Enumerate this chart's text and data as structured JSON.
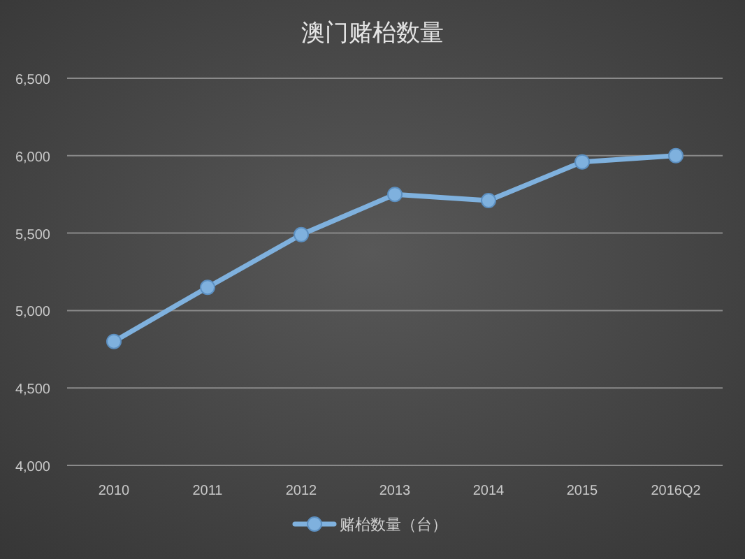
{
  "chart_data": {
    "type": "line",
    "title": "澳门赌枱数量",
    "categories": [
      "2010",
      "2011",
      "2012",
      "2013",
      "2014",
      "2015",
      "2016Q2"
    ],
    "series": [
      {
        "name": "赌枱数量（台）",
        "color": "#7fb1de",
        "values": [
          4800,
          5150,
          5490,
          5750,
          5710,
          5960,
          6000
        ]
      }
    ],
    "ylim": [
      4000,
      6500
    ],
    "yticks": [
      {
        "value": 4000,
        "label": "4,000"
      },
      {
        "value": 4500,
        "label": "4,500"
      },
      {
        "value": 5000,
        "label": "5,000"
      },
      {
        "value": 5500,
        "label": "5,500"
      },
      {
        "value": 6000,
        "label": "6,000"
      },
      {
        "value": 6500,
        "label": "6,500"
      }
    ],
    "grid": "y",
    "legend": "bottom",
    "marker": "circle"
  }
}
